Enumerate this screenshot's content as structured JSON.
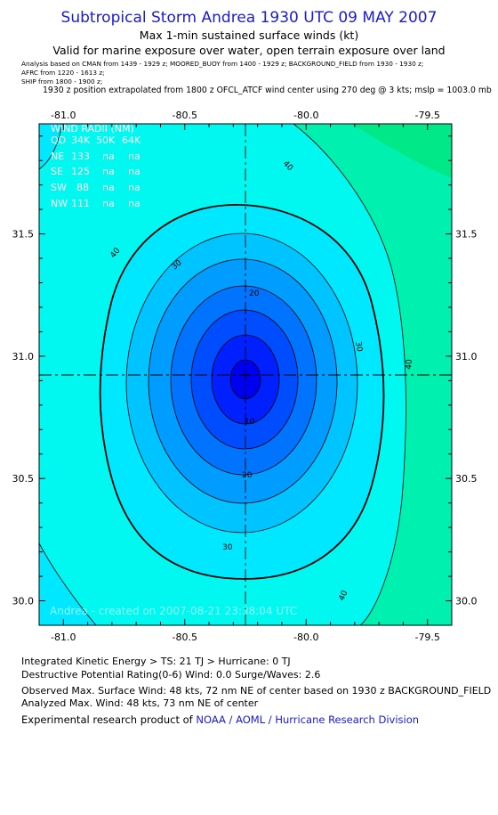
{
  "header": {
    "title": "Subtropical Storm Andrea 1930 UTC 09 MAY 2007",
    "subtitle": "Max 1-min sustained surface winds (kt)",
    "valid": "Valid for marine exposure over water, open terrain exposure over land"
  },
  "sources": {
    "line1": "Analysis based on  CMAN from 1439 - 1929 z;  MOORED_BUOY from 1400 - 1929 z;  BACKGROUND_FIELD from 1930 - 1930 z;",
    "line2": "AFRC from 1220 - 1613 z;",
    "line3": "SHIP from 1800 - 1900 z;"
  },
  "position_note": "1930 z position extrapolated from 1800 z OFCL_ATCF wind center using 270 deg @ 3 kts; mslp = 1003.0 mb",
  "map": {
    "lon_ticks": [
      "-81.0",
      "-80.5",
      "-80.0",
      "-79.5"
    ],
    "lat_ticks": [
      "31.5",
      "31.0",
      "30.5",
      "30.0"
    ],
    "lon_range": [
      -81.1,
      -79.4
    ],
    "lat_range": [
      29.9,
      31.95
    ],
    "center": {
      "lon": -80.03,
      "lat": 30.9
    },
    "contour_labels": [
      "40",
      "40",
      "40",
      "40",
      "30",
      "30",
      "30",
      "20",
      "20",
      "10",
      "40"
    ],
    "created": "Andrea - created on 2007-08-21 23:38:04 UTC",
    "colors": {
      "outer_green": "#00e888",
      "mid_green": "#00f0b0",
      "cyan": "#00f8f0",
      "level_1": "#00e8ff",
      "level_2": "#00c4ff",
      "level_3": "#009cff",
      "level_4": "#0074ff",
      "level_5": "#004cff",
      "level_6": "#0020ff",
      "core": "#0000f0"
    }
  },
  "wind_radii": {
    "title": "WIND RADII (NM)",
    "header": [
      "QD",
      "34K",
      "50K",
      "64K"
    ],
    "rows": [
      [
        "NE",
        "133",
        "na",
        "na"
      ],
      [
        "SE",
        "125",
        "na",
        "na"
      ],
      [
        "SW",
        "88",
        "na",
        "na"
      ],
      [
        "NW",
        "111",
        "na",
        "na"
      ]
    ]
  },
  "footer": {
    "ike": "Integrated Kinetic Energy > TS: 21 TJ   > Hurricane: 0 TJ",
    "dpr": "Destructive Potential Rating(0-6)   Wind: 0.0 Surge/Waves: 2.6",
    "observed": "Observed Max. Surface Wind: 48 kts, 72 nm NE of center based on 1930 z BACKGROUND_FIELD",
    "analyzed": "Analyzed Max. Wind: 48 kts, 73 nm NE of center",
    "product_prefix": "Experimental research product of ",
    "product_org": "NOAA / AOML / Hurricane Research Division"
  }
}
